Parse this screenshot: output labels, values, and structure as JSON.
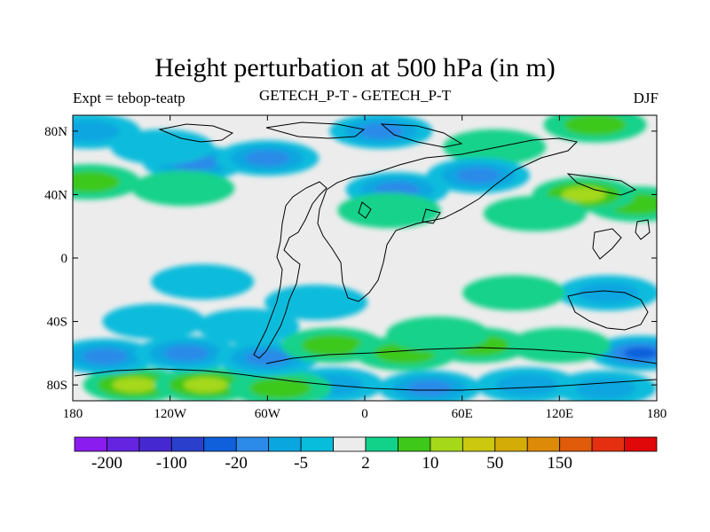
{
  "chart_data": {
    "type": "heatmap",
    "title": "Height perturbation at 500 hPa (in m)",
    "left_string": "Expt = tebop-teatp",
    "center_string": "GETECH_P-T - GETECH_P-T",
    "right_string": "DJF",
    "x_range": [
      -180,
      180
    ],
    "y_range": [
      -90,
      90
    ],
    "x_ticks": [
      {
        "value": -180,
        "label": "180"
      },
      {
        "value": -120,
        "label": "120W"
      },
      {
        "value": -60,
        "label": "60W"
      },
      {
        "value": 0,
        "label": "0"
      },
      {
        "value": 60,
        "label": "60E"
      },
      {
        "value": 120,
        "label": "120E"
      },
      {
        "value": 180,
        "label": "180"
      }
    ],
    "y_ticks": [
      {
        "value": 80,
        "label": "80N"
      },
      {
        "value": 40,
        "label": "40N"
      },
      {
        "value": 0,
        "label": "0"
      },
      {
        "value": -40,
        "label": "40S"
      },
      {
        "value": -80,
        "label": "80S"
      }
    ],
    "colorbar": {
      "colors": [
        "#8a1cf0",
        "#6424e0",
        "#4628d0",
        "#2a40cc",
        "#1060dc",
        "#2c8ae8",
        "#0aa6e0",
        "#08bcdc",
        "#ececec",
        "#12d28a",
        "#3ec81a",
        "#a6d81a",
        "#ccc810",
        "#d4ac08",
        "#dc8a08",
        "#e05c0a",
        "#e43010",
        "#e00808"
      ],
      "labels": [
        {
          "index": 1,
          "text": "-200"
        },
        {
          "index": 3,
          "text": "-100"
        },
        {
          "index": 5,
          "text": "-20"
        },
        {
          "index": 7,
          "text": "-5"
        },
        {
          "index": 9,
          "text": "2"
        },
        {
          "index": 11,
          "text": "10"
        },
        {
          "index": 13,
          "text": "50"
        },
        {
          "index": 15,
          "text": "150"
        }
      ]
    },
    "field_features": [
      {
        "lon": 170,
        "lat": -60,
        "level": -4
      },
      {
        "lon": 148,
        "lat": -82,
        "level": -2
      },
      {
        "lon": 100,
        "lat": -80,
        "level": -2
      },
      {
        "lon": 40,
        "lat": -82,
        "level": -3
      },
      {
        "lon": -20,
        "lat": -80,
        "level": -2
      },
      {
        "lon": -142,
        "lat": -80,
        "level": 3
      },
      {
        "lon": -98,
        "lat": -80,
        "level": 3
      },
      {
        "lon": -52,
        "lat": -82,
        "level": 2
      },
      {
        "lon": -160,
        "lat": -62,
        "level": -3
      },
      {
        "lon": -110,
        "lat": -60,
        "level": -3
      },
      {
        "lon": -60,
        "lat": -63,
        "level": -3
      },
      {
        "lon": -72,
        "lat": -43,
        "level": -1
      },
      {
        "lon": -130,
        "lat": -40,
        "level": -1
      },
      {
        "lon": -20,
        "lat": -55,
        "level": 2
      },
      {
        "lon": 25,
        "lat": -60,
        "level": 2
      },
      {
        "lon": 70,
        "lat": -55,
        "level": 2
      },
      {
        "lon": 120,
        "lat": -55,
        "level": 1
      },
      {
        "lon": 45,
        "lat": -48,
        "level": 1
      },
      {
        "lon": 150,
        "lat": -22,
        "level": -2
      },
      {
        "lon": 92,
        "lat": -22,
        "level": 1
      },
      {
        "lon": -100,
        "lat": -15,
        "level": -1
      },
      {
        "lon": -30,
        "lat": -28,
        "level": -1
      },
      {
        "lon": 168,
        "lat": 34,
        "level": 2
      },
      {
        "lon": 135,
        "lat": 40,
        "level": 3
      },
      {
        "lon": 105,
        "lat": 28,
        "level": 1
      },
      {
        "lon": 80,
        "lat": 70,
        "level": 1
      },
      {
        "lon": 70,
        "lat": 52,
        "level": -3
      },
      {
        "lon": 20,
        "lat": 43,
        "level": -3
      },
      {
        "lon": 10,
        "lat": 80,
        "level": -3
      },
      {
        "lon": 15,
        "lat": 30,
        "level": 1
      },
      {
        "lon": -105,
        "lat": 60,
        "level": -3
      },
      {
        "lon": -60,
        "lat": 63,
        "level": -3
      },
      {
        "lon": -112,
        "lat": 44,
        "level": 1
      },
      {
        "lon": -125,
        "lat": 70,
        "level": -1
      },
      {
        "lon": -170,
        "lat": 48,
        "level": 2
      },
      {
        "lon": 142,
        "lat": 84,
        "level": 2
      },
      {
        "lon": -170,
        "lat": 80,
        "level": -2
      }
    ]
  }
}
